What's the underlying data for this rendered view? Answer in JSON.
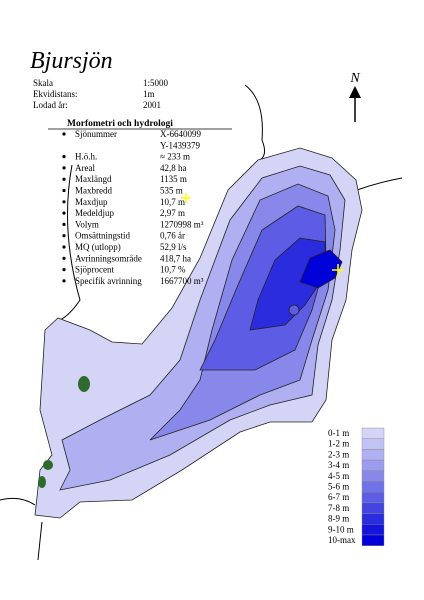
{
  "title": "Bjursjön",
  "info": [
    {
      "label": "Skala",
      "value": "1:5000"
    },
    {
      "label": "Ekvidistans:",
      "value": "1m"
    },
    {
      "label": "Lodad år:",
      "value": "2001"
    }
  ],
  "morphometry": {
    "heading": "Morfometri och hydrologi",
    "rows": [
      {
        "label": "Sjönummer",
        "value": "X-6640099"
      },
      {
        "value": "Y-1439379"
      },
      {
        "label": "H.ö.h.",
        "value": "≈ 233 m"
      },
      {
        "label": "Areal",
        "value": "42,8 ha"
      },
      {
        "label": "Maxlängd",
        "value": "1135 m"
      },
      {
        "label": "Maxbredd",
        "value": "535 m"
      },
      {
        "label": "Maxdjup",
        "value": "10,7 m"
      },
      {
        "label": "Medeldjup",
        "value": "2,97 m"
      },
      {
        "label": "Volym",
        "value": "1270998 m³"
      },
      {
        "label": "Omsättningstid",
        "value": "0,76 år"
      },
      {
        "label": "MQ (utlopp)",
        "value": "52,9 l/s"
      },
      {
        "label": "Avrinningsområde",
        "value": "418,7 ha"
      },
      {
        "label": "Sjöprocent",
        "value": "10,7 %"
      },
      {
        "label": "Specifik avrinning",
        "value": "1667700 m³"
      }
    ]
  },
  "north": "N",
  "legend": [
    {
      "label": "0-1 m",
      "color": "#d4d4f7"
    },
    {
      "label": "1-2 m",
      "color": "#c2c2f4"
    },
    {
      "label": "2-3 m",
      "color": "#afaff1"
    },
    {
      "label": "3-4 m",
      "color": "#9c9cee"
    },
    {
      "label": "4-5 m",
      "color": "#8888eb"
    },
    {
      "label": "5-6 m",
      "color": "#7272e8"
    },
    {
      "label": "6-7 m",
      "color": "#5c5ce5"
    },
    {
      "label": "7-8 m",
      "color": "#4444e2"
    },
    {
      "label": "8-9 m",
      "color": "#2c2cdf"
    },
    {
      "label": "9-10 m",
      "color": "#1414dc"
    },
    {
      "label": "10-max",
      "color": "#0000d8"
    }
  ]
}
